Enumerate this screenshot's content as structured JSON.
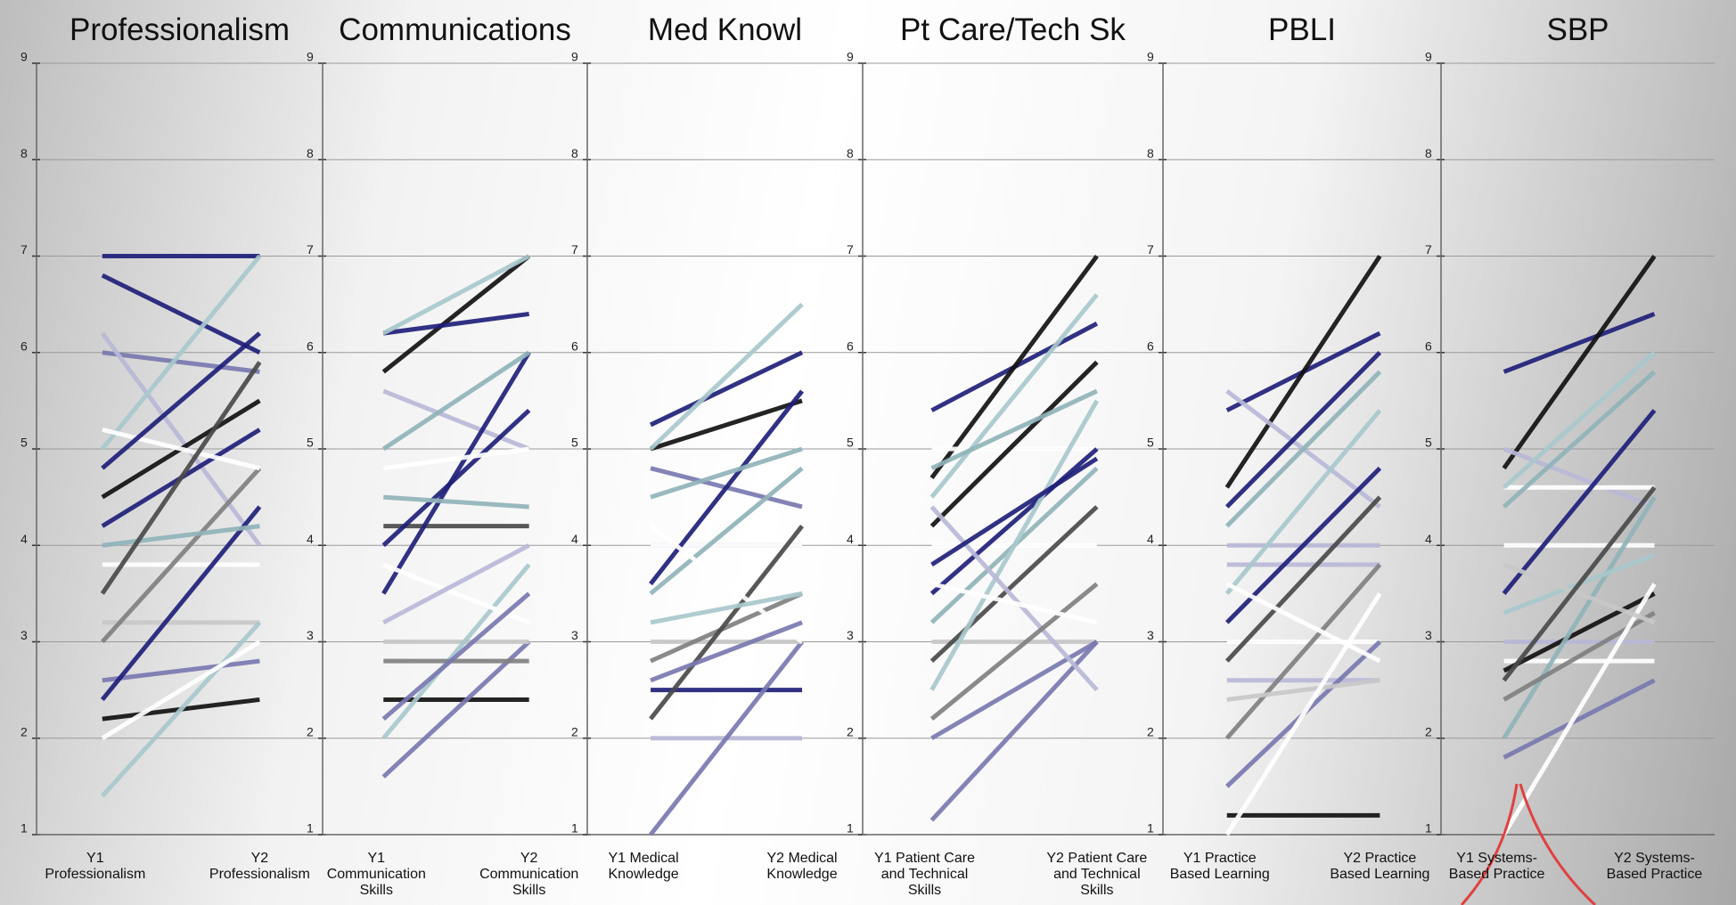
{
  "chart_data": [
    {
      "type": "line",
      "title": "Professionalism",
      "categories": [
        "Y1\nProfessionalism",
        "Y2\nProfessionalism"
      ],
      "ylim": [
        1,
        9
      ],
      "yticks": [
        1,
        2,
        3,
        4,
        5,
        6,
        7,
        8,
        9
      ],
      "grid": true,
      "series": [
        {
          "color": "#1f1f7a",
          "values": [
            7,
            7
          ]
        },
        {
          "color": "#1f1f7a",
          "values": [
            6.8,
            6
          ]
        },
        {
          "color": "#111111",
          "values": [
            2.2,
            2.4
          ]
        },
        {
          "color": "#7878b0",
          "values": [
            6,
            5.8
          ]
        },
        {
          "color": "#b8b8d8",
          "values": [
            6.2,
            4
          ]
        },
        {
          "color": "#a8c8cc",
          "values": [
            5,
            7
          ]
        },
        {
          "color": "#111111",
          "values": [
            4.5,
            5.5
          ]
        },
        {
          "color": "#1f1f7a",
          "values": [
            4.2,
            5.2
          ]
        },
        {
          "color": "#ffffff",
          "values": [
            3.8,
            3.8
          ]
        },
        {
          "color": "#c8c8c8",
          "values": [
            3.2,
            3.2
          ]
        },
        {
          "color": "#808080",
          "values": [
            3,
            4.8
          ]
        },
        {
          "color": "#7878b0",
          "values": [
            2.6,
            2.8
          ]
        },
        {
          "color": "#1f1f7a",
          "values": [
            2.4,
            4.4
          ]
        },
        {
          "color": "#a8c8cc",
          "values": [
            1.4,
            3.2
          ]
        },
        {
          "color": "#ffffff",
          "values": [
            5.2,
            4.8
          ]
        },
        {
          "color": "#8fb3b8",
          "values": [
            4,
            4.2
          ]
        },
        {
          "color": "#4a4a4a",
          "values": [
            3.5,
            5.9
          ]
        },
        {
          "color": "#ffffff",
          "values": [
            2,
            3
          ]
        },
        {
          "color": "#1f1f7a",
          "values": [
            4.8,
            6.2
          ]
        }
      ]
    },
    {
      "type": "line",
      "title": "Communications",
      "categories": [
        "Y1\nCommunication\nSkills",
        "Y2\nCommunication\nSkills"
      ],
      "ylim": [
        1,
        9
      ],
      "yticks": [
        1,
        2,
        3,
        4,
        5,
        6,
        7,
        8,
        9
      ],
      "grid": true,
      "series": [
        {
          "color": "#111111",
          "values": [
            5.8,
            7
          ]
        },
        {
          "color": "#1f1f7a",
          "values": [
            6.2,
            6.4
          ]
        },
        {
          "color": "#a8c8cc",
          "values": [
            6.2,
            7
          ]
        },
        {
          "color": "#b8b8d8",
          "values": [
            5.6,
            5
          ]
        },
        {
          "color": "#4a4a4a",
          "values": [
            4.2,
            4.2
          ]
        },
        {
          "color": "#111111",
          "values": [
            2.4,
            2.4
          ]
        },
        {
          "color": "#7878b0",
          "values": [
            1.6,
            3
          ]
        },
        {
          "color": "#c8c8c8",
          "values": [
            3,
            3
          ]
        },
        {
          "color": "#1f1f7a",
          "values": [
            3.5,
            6
          ]
        },
        {
          "color": "#1f1f7a",
          "values": [
            4,
            5.4
          ]
        },
        {
          "color": "#8fb3b8",
          "values": [
            4.5,
            4.4
          ]
        },
        {
          "color": "#a8c8cc",
          "values": [
            2,
            3.8
          ]
        },
        {
          "color": "#ffffff",
          "values": [
            3.8,
            3.2
          ]
        },
        {
          "color": "#8fb3b8",
          "values": [
            5,
            6
          ]
        },
        {
          "color": "#808080",
          "values": [
            2.8,
            2.8
          ]
        },
        {
          "color": "#b8b8d8",
          "values": [
            3.2,
            4
          ]
        },
        {
          "color": "#ffffff",
          "values": [
            4.8,
            5
          ]
        },
        {
          "color": "#7878b0",
          "values": [
            2.2,
            3.5
          ]
        }
      ]
    },
    {
      "type": "line",
      "title": "Med Knowl",
      "categories": [
        "Y1 Medical\nKnowledge",
        "Y2 Medical\nKnowledge"
      ],
      "ylim": [
        1,
        9
      ],
      "yticks": [
        1,
        2,
        3,
        4,
        5,
        6,
        7,
        8,
        9
      ],
      "grid": true,
      "series": [
        {
          "color": "#1f1f7a",
          "values": [
            5.25,
            6
          ]
        },
        {
          "color": "#111111",
          "values": [
            5,
            5.5
          ]
        },
        {
          "color": "#a8c8cc",
          "values": [
            5,
            6.5
          ]
        },
        {
          "color": "#7878b0",
          "values": [
            4.8,
            4.4
          ]
        },
        {
          "color": "#b8b8d8",
          "values": [
            4,
            4
          ]
        },
        {
          "color": "#ffffff",
          "values": [
            4,
            4
          ]
        },
        {
          "color": "#1f1f7a",
          "values": [
            2.5,
            2.5
          ]
        },
        {
          "color": "#b8b8d8",
          "values": [
            2,
            2
          ]
        },
        {
          "color": "#7878b0",
          "values": [
            1,
            3
          ]
        },
        {
          "color": "#1f1f7a",
          "values": [
            3.6,
            5.6
          ]
        },
        {
          "color": "#c8c8c8",
          "values": [
            3,
            3
          ]
        },
        {
          "color": "#808080",
          "values": [
            2.8,
            3.5
          ]
        },
        {
          "color": "#4a4a4a",
          "values": [
            2.2,
            4.2
          ]
        },
        {
          "color": "#8fb3b8",
          "values": [
            3.5,
            4.8
          ]
        },
        {
          "color": "#ffffff",
          "values": [
            4.2,
            3
          ]
        },
        {
          "color": "#a8c8cc",
          "values": [
            3.2,
            3.5
          ]
        },
        {
          "color": "#8fb3b8",
          "values": [
            4.5,
            5
          ]
        },
        {
          "color": "#7878b0",
          "values": [
            2.6,
            3.2
          ]
        }
      ]
    },
    {
      "type": "line",
      "title": "Pt Care/Tech Sk",
      "categories": [
        "Y1 Patient Care\nand Technical\nSkills",
        "Y2 Patient Care\nand Technical\nSkills"
      ],
      "ylim": [
        1,
        9
      ],
      "yticks": [
        1,
        2,
        3,
        4,
        5,
        6,
        7,
        8,
        9
      ],
      "grid": true,
      "series": [
        {
          "color": "#1f1f7a",
          "values": [
            5.4,
            6.3
          ]
        },
        {
          "color": "#111111",
          "values": [
            4.7,
            7
          ]
        },
        {
          "color": "#ffffff",
          "values": [
            5,
            5
          ]
        },
        {
          "color": "#a8c8cc",
          "values": [
            4.5,
            6.6
          ]
        },
        {
          "color": "#111111",
          "values": [
            4.2,
            5.9
          ]
        },
        {
          "color": "#ffffff",
          "values": [
            4,
            4
          ]
        },
        {
          "color": "#1f1f7a",
          "values": [
            3.5,
            5
          ]
        },
        {
          "color": "#c8c8c8",
          "values": [
            3,
            3
          ]
        },
        {
          "color": "#7878b0",
          "values": [
            1.15,
            3
          ]
        },
        {
          "color": "#7878b0",
          "values": [
            2,
            3
          ]
        },
        {
          "color": "#4a4a4a",
          "values": [
            2.8,
            4.4
          ]
        },
        {
          "color": "#8fb3b8",
          "values": [
            3.2,
            4.8
          ]
        },
        {
          "color": "#a8c8cc",
          "values": [
            2.5,
            5.5
          ]
        },
        {
          "color": "#b8b8d8",
          "values": [
            4.4,
            2.5
          ]
        },
        {
          "color": "#1f1f7a",
          "values": [
            3.8,
            4.9
          ]
        },
        {
          "color": "#808080",
          "values": [
            2.2,
            3.6
          ]
        },
        {
          "color": "#ffffff",
          "values": [
            3.6,
            3.2
          ]
        },
        {
          "color": "#8fb3b8",
          "values": [
            4.8,
            5.6
          ]
        }
      ]
    },
    {
      "type": "line",
      "title": "PBLI",
      "categories": [
        "Y1 Practice\nBased Learning",
        "Y2 Practice\nBased Learning"
      ],
      "ylim": [
        1,
        9
      ],
      "yticks": [
        1,
        2,
        3,
        4,
        5,
        6,
        7,
        8,
        9
      ],
      "grid": true,
      "series": [
        {
          "color": "#1f1f7a",
          "values": [
            5.4,
            6.2
          ]
        },
        {
          "color": "#111111",
          "values": [
            4.6,
            7
          ]
        },
        {
          "color": "#b8b8d8",
          "values": [
            5.6,
            4.4
          ]
        },
        {
          "color": "#1f1f7a",
          "values": [
            4.4,
            6
          ]
        },
        {
          "color": "#b8b8d8",
          "values": [
            4,
            4
          ]
        },
        {
          "color": "#b8b8d8",
          "values": [
            3.8,
            3.8
          ]
        },
        {
          "color": "#111111",
          "values": [
            1.2,
            1.2
          ]
        },
        {
          "color": "#ffffff",
          "values": [
            3,
            3
          ]
        },
        {
          "color": "#a8c8cc",
          "values": [
            3.5,
            5.4
          ]
        },
        {
          "color": "#b8b8d8",
          "values": [
            2.6,
            2.6
          ]
        },
        {
          "color": "#808080",
          "values": [
            2,
            3.8
          ]
        },
        {
          "color": "#7878b0",
          "values": [
            1.5,
            3
          ]
        },
        {
          "color": "#8fb3b8",
          "values": [
            4.2,
            5.8
          ]
        },
        {
          "color": "#1f1f7a",
          "values": [
            3.2,
            4.8
          ]
        },
        {
          "color": "#c8c8c8",
          "values": [
            2.4,
            2.6
          ]
        },
        {
          "color": "#ffffff",
          "values": [
            1,
            3.5
          ]
        },
        {
          "color": "#4a4a4a",
          "values": [
            2.8,
            4.5
          ]
        },
        {
          "color": "#ffffff",
          "values": [
            3.6,
            2.8
          ]
        }
      ]
    },
    {
      "type": "line",
      "title": "SBP",
      "categories": [
        "Y1 Systems-\nBased Practice",
        "Y2 Systems-\nBased Practice"
      ],
      "ylim": [
        1,
        9
      ],
      "yticks": [
        1,
        2,
        3,
        4,
        5,
        6,
        7,
        8,
        9
      ],
      "grid": true,
      "series": [
        {
          "color": "#1f1f7a",
          "values": [
            5.8,
            6.4
          ]
        },
        {
          "color": "#111111",
          "values": [
            4.8,
            7
          ]
        },
        {
          "color": "#b8b8d8",
          "values": [
            5,
            4.4
          ]
        },
        {
          "color": "#ffffff",
          "values": [
            4.6,
            4.6
          ]
        },
        {
          "color": "#a8c8cc",
          "values": [
            4.6,
            6
          ]
        },
        {
          "color": "#ffffff",
          "values": [
            4,
            4
          ]
        },
        {
          "color": "#ffffff",
          "values": [
            2.8,
            2.8
          ]
        },
        {
          "color": "#1f1f7a",
          "values": [
            3.5,
            5.4
          ]
        },
        {
          "color": "#b8b8d8",
          "values": [
            3,
            3
          ]
        },
        {
          "color": "#111111",
          "values": [
            2.7,
            3.5
          ]
        },
        {
          "color": "#8fb3b8",
          "values": [
            2,
            4.5
          ]
        },
        {
          "color": "#7878b0",
          "values": [
            1.8,
            2.6
          ]
        },
        {
          "color": "#a8c8cc",
          "values": [
            3.3,
            3.9
          ]
        },
        {
          "color": "#808080",
          "values": [
            2.4,
            3.3
          ]
        },
        {
          "color": "#ffffff",
          "values": [
            1,
            3.6
          ]
        },
        {
          "color": "#8fb3b8",
          "values": [
            4.4,
            5.8
          ]
        },
        {
          "color": "#c8c8c8",
          "values": [
            3.8,
            3.2
          ]
        },
        {
          "color": "#4a4a4a",
          "values": [
            2.6,
            4.6
          ]
        }
      ]
    }
  ]
}
